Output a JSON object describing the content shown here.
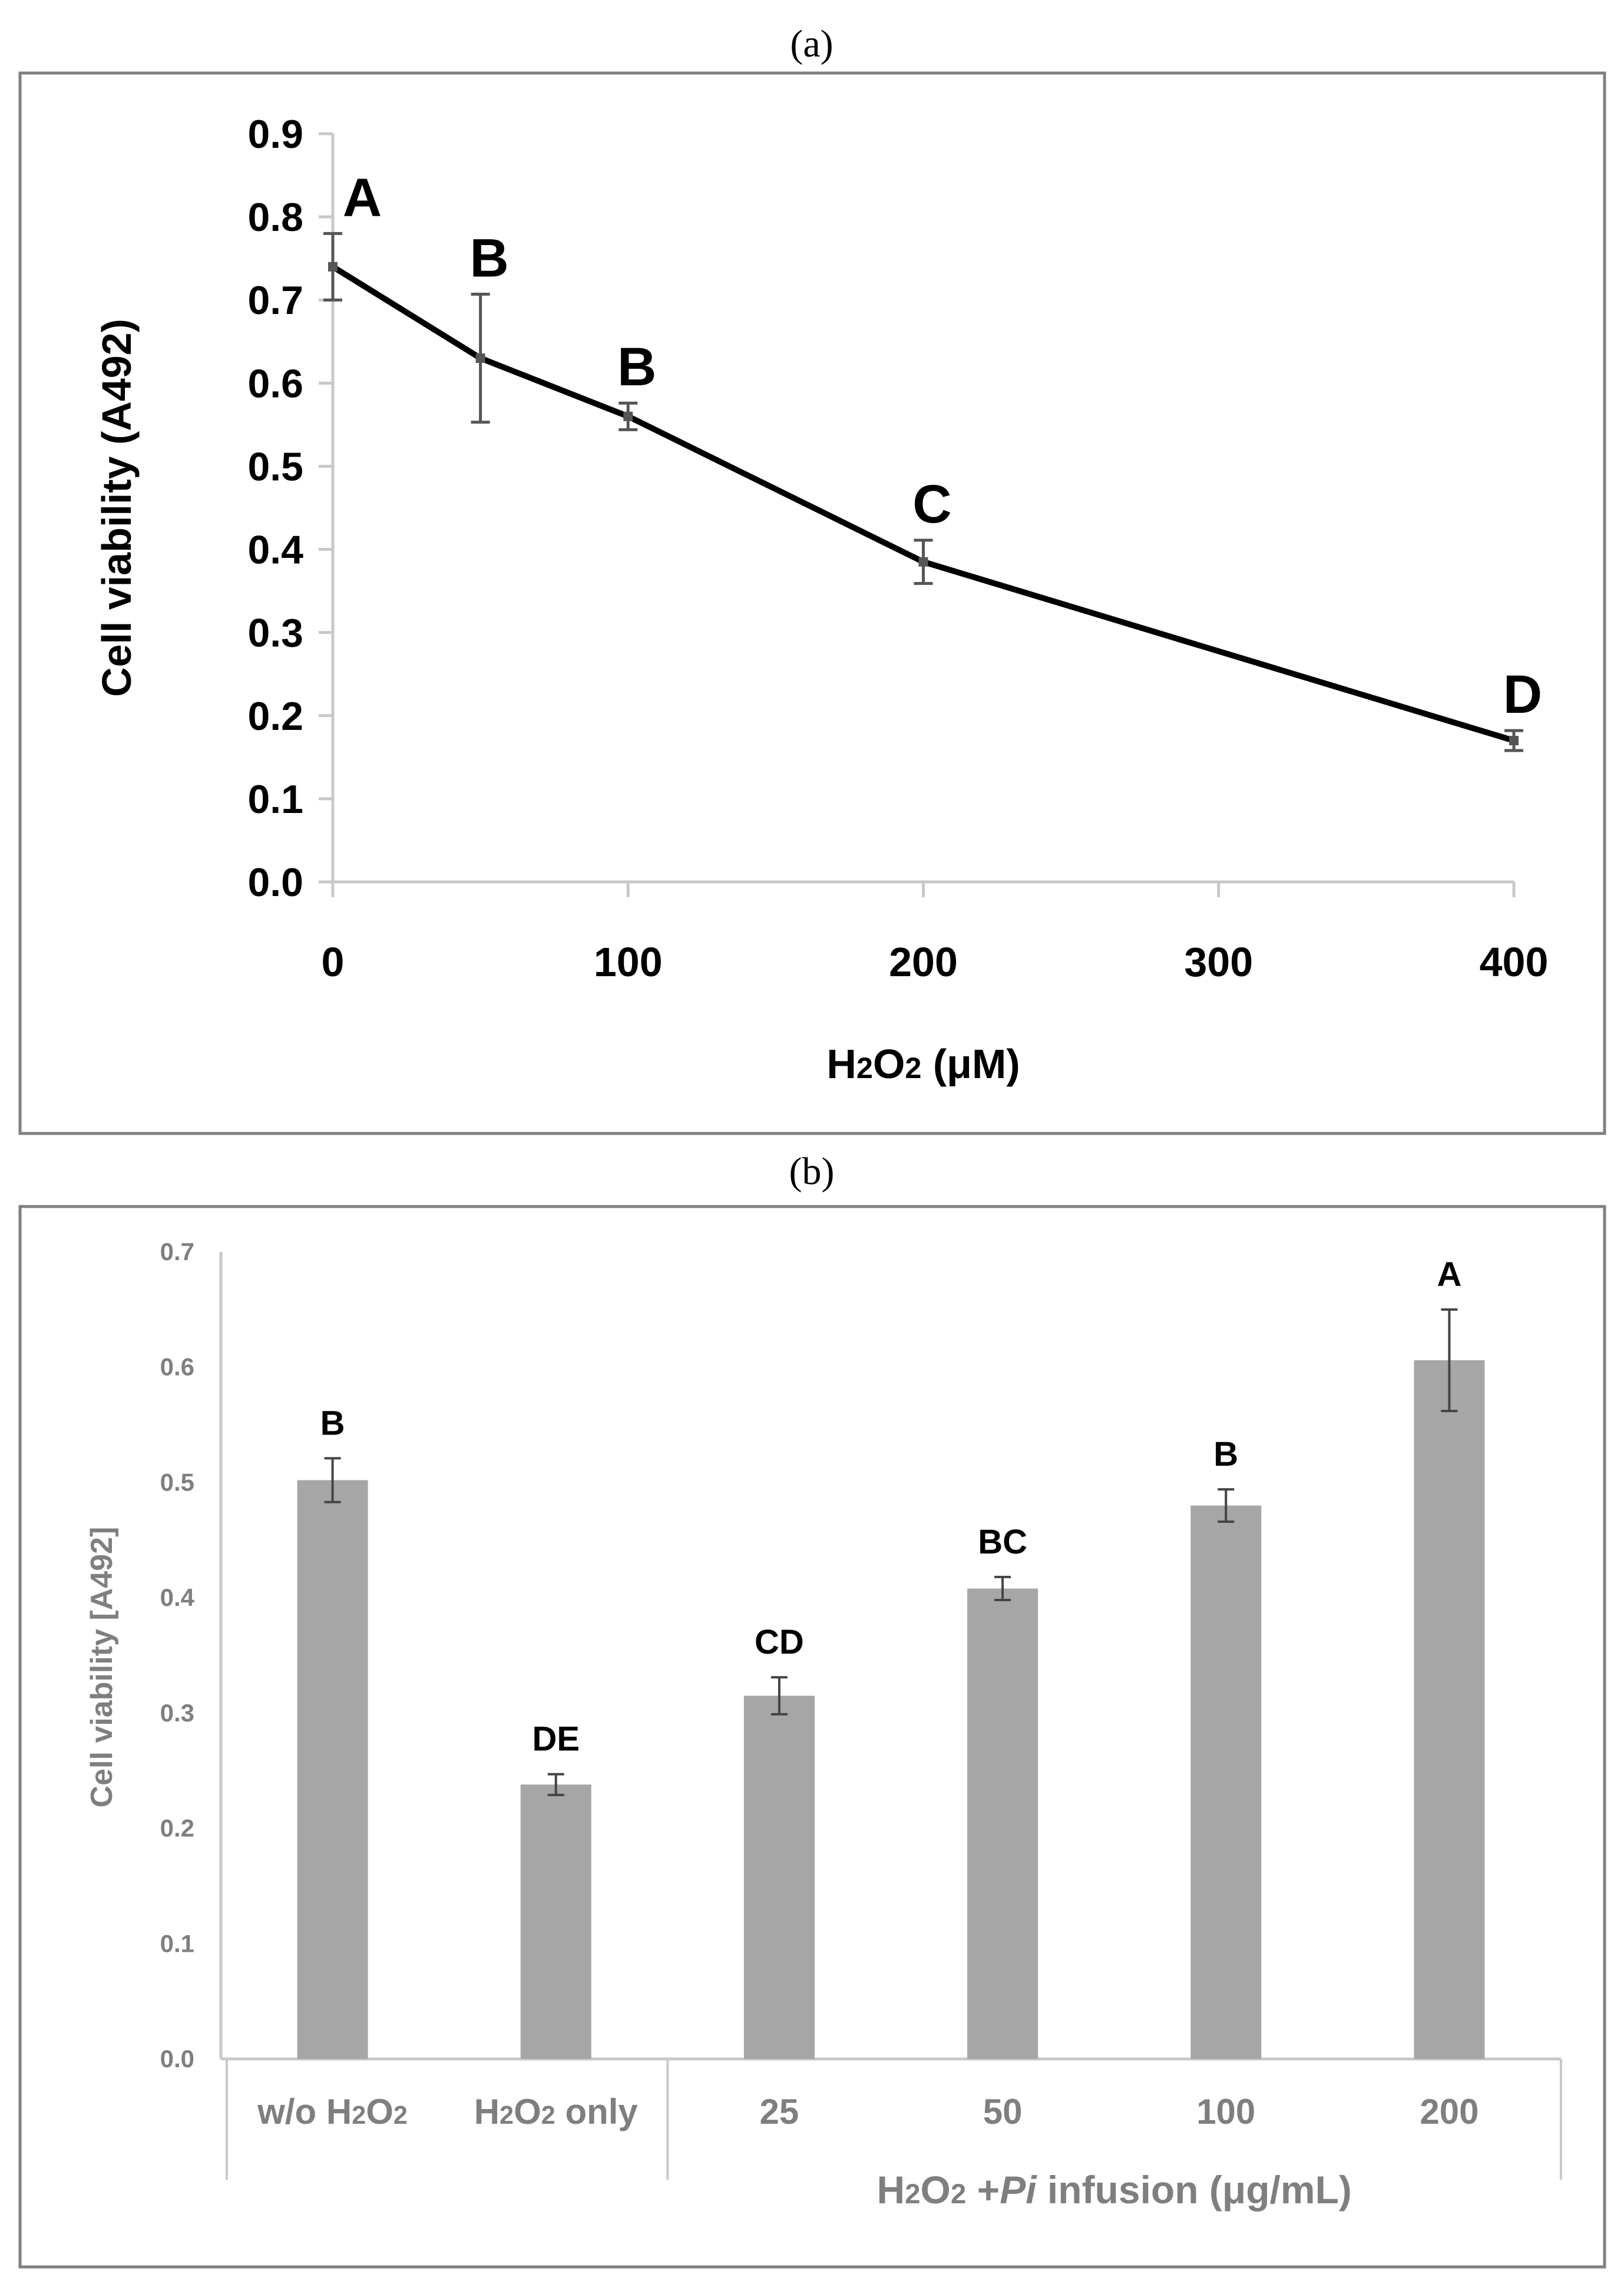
{
  "chart_data": [
    {
      "panel_label": "(a)",
      "type": "line",
      "xlabel": "H2O2 (μM)",
      "ylabel": "Cell viability (A492)",
      "x": [
        0,
        50,
        100,
        200,
        400
      ],
      "values": [
        0.74,
        0.63,
        0.56,
        0.385,
        0.17
      ],
      "errors": [
        0.04,
        0.077,
        0.016,
        0.026,
        0.012
      ],
      "letters": [
        "A",
        "B",
        "B",
        "C",
        "D"
      ],
      "xlim": [
        0,
        400
      ],
      "ylim": [
        0,
        0.9
      ],
      "xticks": [
        "0",
        "100",
        "200",
        "300",
        "400"
      ],
      "yticks": [
        "0.0",
        "0.1",
        "0.2",
        "0.3",
        "0.4",
        "0.5",
        "0.6",
        "0.7",
        "0.8",
        "0.9"
      ],
      "grid": false
    },
    {
      "panel_label": "(b)",
      "type": "bar",
      "categories": [
        "w/o H2O2",
        "H2O2 only",
        "25",
        "50",
        "100",
        "200"
      ],
      "values": [
        0.502,
        0.238,
        0.315,
        0.408,
        0.48,
        0.606
      ],
      "errors": [
        0.019,
        0.009,
        0.016,
        0.01,
        0.014,
        0.044
      ],
      "letters": [
        "B",
        "DE",
        "CD",
        "BC",
        "B",
        "A"
      ],
      "group_label": "H2O2 +Pi infusion (μg/mL)",
      "ylabel": "Cell viability  [A492]",
      "ylim": [
        0,
        0.7
      ],
      "yticks": [
        "0.0",
        "0.1",
        "0.2",
        "0.3",
        "0.4",
        "0.5",
        "0.6",
        "0.7"
      ],
      "grid": false
    }
  ]
}
